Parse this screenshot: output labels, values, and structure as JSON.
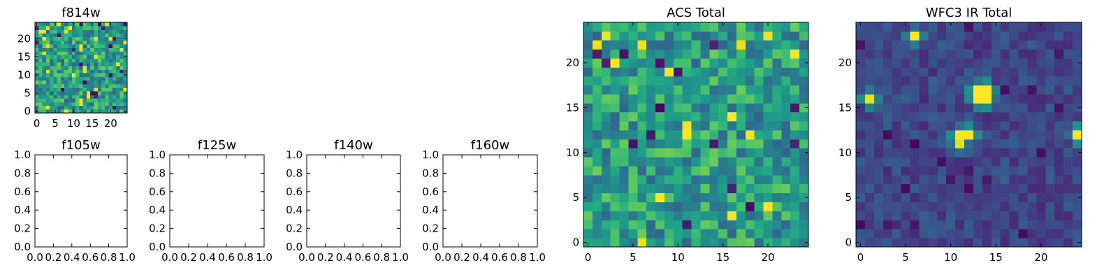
{
  "chart_data": [
    {
      "type": "heatmap",
      "title": "f814w",
      "xlim": [
        -0.5,
        24.5
      ],
      "ylim": [
        -0.5,
        24.5
      ],
      "xticks": [
        0,
        5,
        10,
        15,
        20
      ],
      "yticks": [
        0,
        5,
        10,
        15,
        20
      ],
      "xtick_labels": [
        "0",
        "5",
        "10",
        "15",
        "20"
      ],
      "ytick_labels": [
        "0",
        "5",
        "10",
        "15",
        "20"
      ],
      "colormap": "viridis",
      "grid": false,
      "pixel_grid": {
        "rows": 25,
        "cols": 25,
        "origin": "lower",
        "value_range": [
          0,
          1
        ]
      },
      "pattern": "noise"
    },
    {
      "type": "heatmap",
      "title": "f105w",
      "xlim": [
        0.0,
        1.0
      ],
      "ylim": [
        0.0,
        1.0
      ],
      "xticks": [
        0.0,
        0.2,
        0.4,
        0.6,
        0.8,
        1.0
      ],
      "yticks": [
        0.0,
        0.2,
        0.4,
        0.6,
        0.8,
        1.0
      ],
      "xtick_labels": [
        "0.0",
        "0.2",
        "0.4",
        "0.6",
        "0.8",
        "1.0"
      ],
      "ytick_labels": [
        "0.0",
        "0.2",
        "0.4",
        "0.6",
        "0.8",
        "1.0"
      ],
      "empty": true
    },
    {
      "type": "heatmap",
      "title": "f125w",
      "xlim": [
        0.0,
        1.0
      ],
      "ylim": [
        0.0,
        1.0
      ],
      "xticks": [
        0.0,
        0.2,
        0.4,
        0.6,
        0.8,
        1.0
      ],
      "yticks": [
        0.0,
        0.2,
        0.4,
        0.6,
        0.8,
        1.0
      ],
      "xtick_labels": [
        "0.0",
        "0.2",
        "0.4",
        "0.6",
        "0.8",
        "1.0"
      ],
      "ytick_labels": [
        "0.0",
        "0.2",
        "0.4",
        "0.6",
        "0.8",
        "1.0"
      ],
      "empty": true
    },
    {
      "type": "heatmap",
      "title": "f140w",
      "xlim": [
        0.0,
        1.0
      ],
      "ylim": [
        0.0,
        1.0
      ],
      "xticks": [
        0.0,
        0.2,
        0.4,
        0.6,
        0.8,
        1.0
      ],
      "yticks": [
        0.0,
        0.2,
        0.4,
        0.6,
        0.8,
        1.0
      ],
      "xtick_labels": [
        "0.0",
        "0.2",
        "0.4",
        "0.6",
        "0.8",
        "1.0"
      ],
      "ytick_labels": [
        "0.0",
        "0.2",
        "0.4",
        "0.6",
        "0.8",
        "1.0"
      ],
      "empty": true
    },
    {
      "type": "heatmap",
      "title": "f160w",
      "xlim": [
        0.0,
        1.0
      ],
      "ylim": [
        0.0,
        1.0
      ],
      "xticks": [
        0.0,
        0.2,
        0.4,
        0.6,
        0.8,
        1.0
      ],
      "yticks": [
        0.0,
        0.2,
        0.4,
        0.6,
        0.8,
        1.0
      ],
      "xtick_labels": [
        "0.0",
        "0.2",
        "0.4",
        "0.6",
        "0.8",
        "1.0"
      ],
      "ytick_labels": [
        "0.0",
        "0.2",
        "0.4",
        "0.6",
        "0.8",
        "1.0"
      ],
      "empty": true
    },
    {
      "type": "heatmap",
      "title": "ACS Total",
      "xlim": [
        -0.5,
        24.5
      ],
      "ylim": [
        -0.5,
        24.5
      ],
      "xticks": [
        0,
        5,
        10,
        15,
        20
      ],
      "yticks": [
        0,
        5,
        10,
        15,
        20
      ],
      "xtick_labels": [
        "0",
        "5",
        "10",
        "15",
        "20"
      ],
      "ytick_labels": [
        "0",
        "5",
        "10",
        "15",
        "20"
      ],
      "colormap": "viridis",
      "grid": false,
      "pixel_grid": {
        "rows": 25,
        "cols": 25,
        "origin": "lower",
        "value_range": [
          0,
          1
        ]
      },
      "pattern": "noise"
    },
    {
      "type": "heatmap",
      "title": "WFC3 IR Total",
      "xlim": [
        -0.5,
        24.5
      ],
      "ylim": [
        -0.5,
        24.5
      ],
      "xticks": [
        0,
        5,
        10,
        15,
        20
      ],
      "yticks": [
        0,
        5,
        10,
        15,
        20
      ],
      "xtick_labels": [
        "0",
        "5",
        "10",
        "15",
        "20"
      ],
      "ytick_labels": [
        "0",
        "5",
        "10",
        "15",
        "20"
      ],
      "colormap": "viridis",
      "grid": false,
      "pixel_grid": {
        "rows": 25,
        "cols": 25,
        "origin": "lower",
        "value_range": [
          0,
          1
        ]
      },
      "pattern": "sources",
      "bright_sources": [
        {
          "x": 6,
          "y": 23,
          "value": 1.0
        },
        {
          "x": 1,
          "y": 16,
          "value": 0.95
        },
        {
          "x": 13,
          "y": 17,
          "value": 1.0
        },
        {
          "x": 14,
          "y": 17,
          "value": 1.0
        },
        {
          "x": 13,
          "y": 16,
          "value": 1.0
        },
        {
          "x": 14,
          "y": 16,
          "value": 1.0
        },
        {
          "x": 11,
          "y": 12,
          "value": 1.0
        },
        {
          "x": 12,
          "y": 12,
          "value": 1.0
        },
        {
          "x": 11,
          "y": 11,
          "value": 0.95
        },
        {
          "x": 24,
          "y": 12,
          "value": 1.0
        }
      ]
    }
  ]
}
